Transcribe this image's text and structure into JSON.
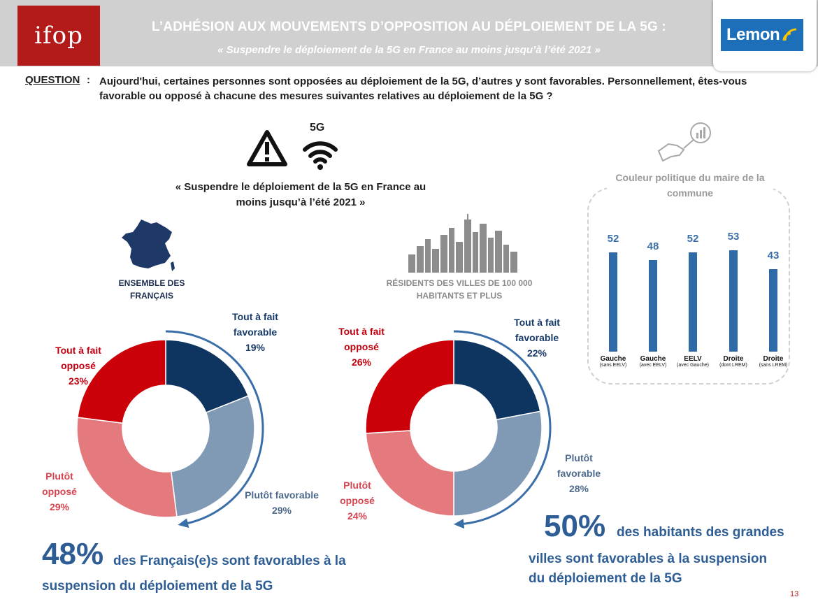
{
  "header": {
    "logo_text": "ifop",
    "title": "L’ADHÉSION AUX MOUVEMENTS D’OPPOSITION AU DÉPLOIEMENT DE LA 5G :",
    "subtitle": "« Suspendre le déploiement de la 5G en France au moins jusqu’à l’été 2021 »",
    "partner_logo": "Lemon",
    "ifop_color": "#b31b1b",
    "lemon_color": "#1c6fb8"
  },
  "question": {
    "label": "QUESTION",
    "colon": ":",
    "text": "Aujourd'hui, certaines personnes sont opposées au déploiement de la 5G, d’autres y sont favorables. Personnellement, êtes-vous favorable ou opposé à chacune des mesures suivantes relatives au déploiement de la 5G ?"
  },
  "icons": {
    "warning": "warning-icon",
    "wifi": "wifi-icon",
    "wifi_label": "5G"
  },
  "proposal": "« Suspendre le déploiement de la 5G en France au moins jusqu’à l’été 2021 »",
  "colors": {
    "tout_a_fait_favorable": "#0e3460",
    "plutot_favorable": "#8099b5",
    "plutot_oppose": "#e47a7e",
    "tout_a_fait_oppose": "#cc0008",
    "bars": "#2e6aa8",
    "arc": "#3a6ea8"
  },
  "chart_data": [
    {
      "type": "pie",
      "group_label": "ENSEMBLE DES FRANÇAIS",
      "slices": [
        {
          "label_line1": "Tout à fait",
          "label_line2": "favorable",
          "pct_text": "19%",
          "value": 19
        },
        {
          "label_line1": "Plutôt favorable",
          "label_line2": "",
          "pct_text": "29%",
          "value": 29
        },
        {
          "label_line1": "Plutôt",
          "label_line2": "opposé",
          "pct_text": "29%",
          "value": 29
        },
        {
          "label_line1": "Tout à fait",
          "label_line2": "opposé",
          "pct_text": "23%",
          "value": 23
        }
      ],
      "summary_pct": "48%",
      "summary_text": "des Français(e)s sont favorables à la suspension du déploiement de la 5G"
    },
    {
      "type": "pie",
      "group_label": "RÉSIDENTS DES VILLES DE 100 000 HABITANTS ET PLUS",
      "slices": [
        {
          "label_line1": "Tout à fait",
          "label_line2": "favorable",
          "pct_text": "22%",
          "value": 22
        },
        {
          "label_line1": "Plutôt",
          "label_line2": "favorable",
          "pct_text": "28%",
          "value": 28
        },
        {
          "label_line1": "Plutôt",
          "label_line2": "opposé",
          "pct_text": "24%",
          "value": 24
        },
        {
          "label_line1": "Tout à fait",
          "label_line2": "opposé",
          "pct_text": "26%",
          "value": 26
        }
      ],
      "summary_pct": "50%",
      "summary_text_line1": "des habitants des grandes",
      "summary_text_line2": "villes  sont favorables à la suspension",
      "summary_text_line3": "du déploiement de la 5G"
    },
    {
      "type": "bar",
      "title": "Couleur politique du maire de la commune",
      "categories": [
        {
          "main": "Gauche",
          "sub": "(sans EELV)"
        },
        {
          "main": "Gauche",
          "sub": "(avec EELV)"
        },
        {
          "main": "EELV",
          "sub": "(avec Gauche)"
        },
        {
          "main": "Droite",
          "sub": "(dont LREM)"
        },
        {
          "main": "Droite",
          "sub": "(sans  LREM)"
        }
      ],
      "values": [
        52,
        48,
        52,
        53,
        43
      ]
    }
  ],
  "page_number": "13"
}
